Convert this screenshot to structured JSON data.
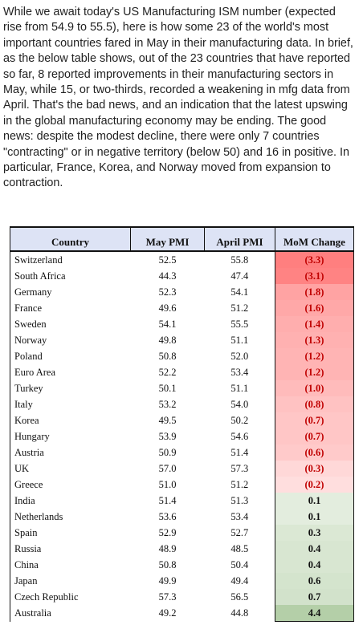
{
  "intro": {
    "lines": [
      "While we await today's US Manufacturing ISM number (expected",
      "rise from 54.9 to 55.5), here is how some 23 of the world's most",
      "important countries fared in May in their manufacturing data. In brief,",
      "as the below table shows, out of the 23 countries that have reported",
      "so far, 8 reported improvements in their manufacturing sectors in",
      "May, while 15, or two-thirds, recorded a weakening in mfg data from",
      "April. That's the bad news, and an indication that the latest upswing",
      "in the global manufacturing economy may be ending. The good",
      "news: despite the modest decline, there were only 7 countries",
      "\"contracting\" or in negative territory (below 50) and 16 in positive. In",
      "particular, France, Korea, and Norway moved from expansion to",
      "contraction."
    ]
  },
  "table": {
    "headers": [
      "Country",
      "May PMI",
      "April PMI",
      "MoM Change"
    ],
    "colors": {
      "negative_text": "#c00000",
      "positive_text": "#111111",
      "negative_strong": "#ff7f7f",
      "negative_light": "#fff4f4",
      "positive_light": "#f4f8f1",
      "positive_strong": "#b4cfa8",
      "header_bg": "#dde3f5"
    },
    "rows": [
      {
        "country": "Switzerland",
        "may": "52.5",
        "april": "55.8",
        "change": "(3.3)",
        "value": -3.3
      },
      {
        "country": "South Africa",
        "may": "44.3",
        "april": "47.4",
        "change": "(3.1)",
        "value": -3.1
      },
      {
        "country": "Germany",
        "may": "52.3",
        "april": "54.1",
        "change": "(1.8)",
        "value": -1.8
      },
      {
        "country": "France",
        "may": "49.6",
        "april": "51.2",
        "change": "(1.6)",
        "value": -1.6
      },
      {
        "country": "Sweden",
        "may": "54.1",
        "april": "55.5",
        "change": "(1.4)",
        "value": -1.4
      },
      {
        "country": "Norway",
        "may": "49.8",
        "april": "51.1",
        "change": "(1.3)",
        "value": -1.3
      },
      {
        "country": "Poland",
        "may": "50.8",
        "april": "52.0",
        "change": "(1.2)",
        "value": -1.2
      },
      {
        "country": "Euro Area",
        "may": "52.2",
        "april": "53.4",
        "change": "(1.2)",
        "value": -1.2
      },
      {
        "country": "Turkey",
        "may": "50.1",
        "april": "51.1",
        "change": "(1.0)",
        "value": -1.0
      },
      {
        "country": "Italy",
        "may": "53.2",
        "april": "54.0",
        "change": "(0.8)",
        "value": -0.8
      },
      {
        "country": "Korea",
        "may": "49.5",
        "april": "50.2",
        "change": "(0.7)",
        "value": -0.7
      },
      {
        "country": "Hungary",
        "may": "53.9",
        "april": "54.6",
        "change": "(0.7)",
        "value": -0.7
      },
      {
        "country": "Austria",
        "may": "50.9",
        "april": "51.4",
        "change": "(0.6)",
        "value": -0.6
      },
      {
        "country": "UK",
        "may": "57.0",
        "april": "57.3",
        "change": "(0.3)",
        "value": -0.3
      },
      {
        "country": "Greece",
        "may": "51.0",
        "april": "51.2",
        "change": "(0.2)",
        "value": -0.2
      },
      {
        "country": "India",
        "may": "51.4",
        "april": "51.3",
        "change": "0.1",
        "value": 0.1
      },
      {
        "country": "Netherlands",
        "may": "53.6",
        "april": "53.4",
        "change": "0.1",
        "value": 0.1
      },
      {
        "country": "Spain",
        "may": "52.9",
        "april": "52.7",
        "change": "0.3",
        "value": 0.3
      },
      {
        "country": "Russia",
        "may": "48.9",
        "april": "48.5",
        "change": "0.4",
        "value": 0.4
      },
      {
        "country": "China",
        "may": "50.8",
        "april": "50.4",
        "change": "0.4",
        "value": 0.4
      },
      {
        "country": "Japan",
        "may": "49.9",
        "april": "49.4",
        "change": "0.6",
        "value": 0.6
      },
      {
        "country": "Czech Republic",
        "may": "57.3",
        "april": "56.5",
        "change": "0.7",
        "value": 0.7
      },
      {
        "country": "Australia",
        "may": "49.2",
        "april": "44.8",
        "change": "4.4",
        "value": 4.4
      }
    ]
  }
}
